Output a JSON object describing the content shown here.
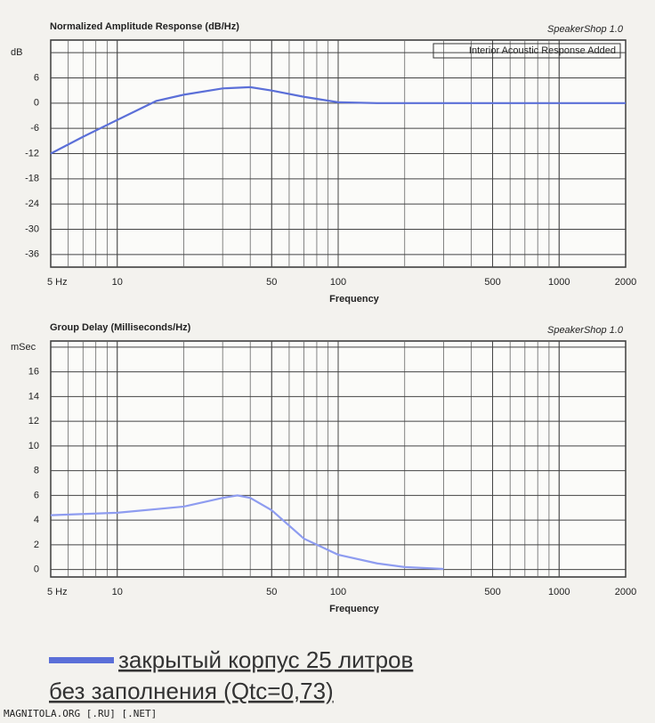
{
  "chart_data": [
    {
      "type": "line",
      "title": "Normalized Amplitude Response (dB/Hz)",
      "brand": "SpeakerShop 1.0",
      "note": "Interior Acoustic Response Added",
      "x_label": "Frequency",
      "log_x": true,
      "grid": true,
      "minor_grid": true,
      "xlim": [
        5,
        2000
      ],
      "xticks": [
        {
          "value": 5,
          "label": "5 Hz"
        },
        10,
        50,
        100,
        500,
        1000,
        2000
      ],
      "ylim": [
        -39,
        15
      ],
      "yticks": [
        {
          "value": 12,
          "label": "dB"
        },
        6,
        0,
        -6,
        -12,
        -18,
        -24,
        -30,
        -36
      ],
      "series": [
        {
          "name": "закрытый корпус 25 литров",
          "color": "#5b6fd8",
          "x": [
            5,
            7,
            10,
            15,
            20,
            30,
            40,
            50,
            70,
            100,
            150,
            200,
            500,
            1000,
            2000
          ],
          "values": [
            -12,
            -8,
            -4,
            0.5,
            2,
            3.5,
            3.8,
            3,
            1.5,
            0.2,
            0,
            0,
            0,
            0,
            0
          ]
        }
      ]
    },
    {
      "type": "line",
      "title": "Group Delay (Milliseconds/Hz)",
      "brand": "SpeakerShop 1.0",
      "x_label": "Frequency",
      "log_x": true,
      "grid": true,
      "minor_grid": true,
      "xlim": [
        5,
        2000
      ],
      "xticks": [
        {
          "value": 5,
          "label": "5 Hz"
        },
        10,
        50,
        100,
        500,
        1000,
        2000
      ],
      "ylim": [
        -0.6,
        18.5
      ],
      "yticks": [
        {
          "value": 18,
          "label": "mSec"
        },
        16,
        14,
        12,
        10,
        8,
        6,
        4,
        2,
        0
      ],
      "series": [
        {
          "color": "#8e9cf0",
          "x": [
            5,
            10,
            20,
            30,
            35,
            40,
            50,
            70,
            100,
            150,
            200,
            300
          ],
          "values": [
            4.4,
            4.6,
            5.1,
            5.8,
            6,
            5.8,
            4.8,
            2.5,
            1.2,
            0.5,
            0.2,
            0.05
          ]
        }
      ]
    }
  ],
  "legend_line2": "без заполнения (Qtc=0,73)",
  "footer": "MAGNITOLA.ORG [.RU] [.NET]"
}
